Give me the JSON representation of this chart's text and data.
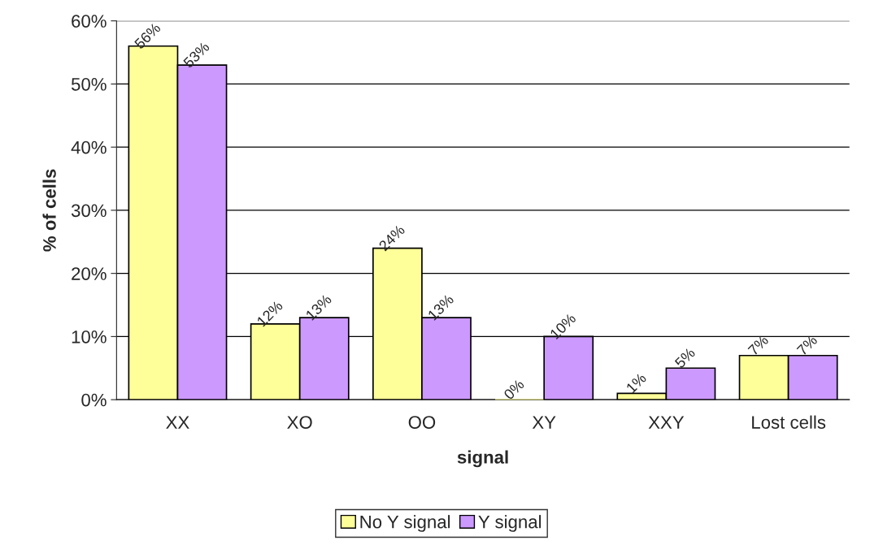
{
  "chart_data": {
    "type": "bar",
    "xlabel": "signal",
    "ylabel": "% of cells",
    "categories": [
      "XX",
      "XO",
      "OO",
      "XY",
      "XXY",
      "Lost cells"
    ],
    "series": [
      {
        "name": "No Y signal",
        "color": "#ffff99",
        "values": [
          56,
          12,
          24,
          0,
          1,
          7
        ],
        "value_labels": [
          "56%",
          "12%",
          "24%",
          "0%",
          "1%",
          "7%"
        ]
      },
      {
        "name": "Y signal",
        "color": "#cc99ff",
        "values": [
          53,
          13,
          13,
          10,
          5,
          7
        ],
        "value_labels": [
          "53%",
          "13%",
          "13%",
          "10%",
          "5%",
          "7%"
        ]
      }
    ],
    "ylim": [
      0,
      60
    ],
    "yticks": [
      {
        "value": 0,
        "label": "0%"
      },
      {
        "value": 10,
        "label": "10%"
      },
      {
        "value": 20,
        "label": "20%"
      },
      {
        "value": 30,
        "label": "30%"
      },
      {
        "value": 40,
        "label": "40%"
      },
      {
        "value": 50,
        "label": "50%"
      },
      {
        "value": 60,
        "label": "60%"
      }
    ],
    "grid": "y",
    "legend": "bottom"
  }
}
